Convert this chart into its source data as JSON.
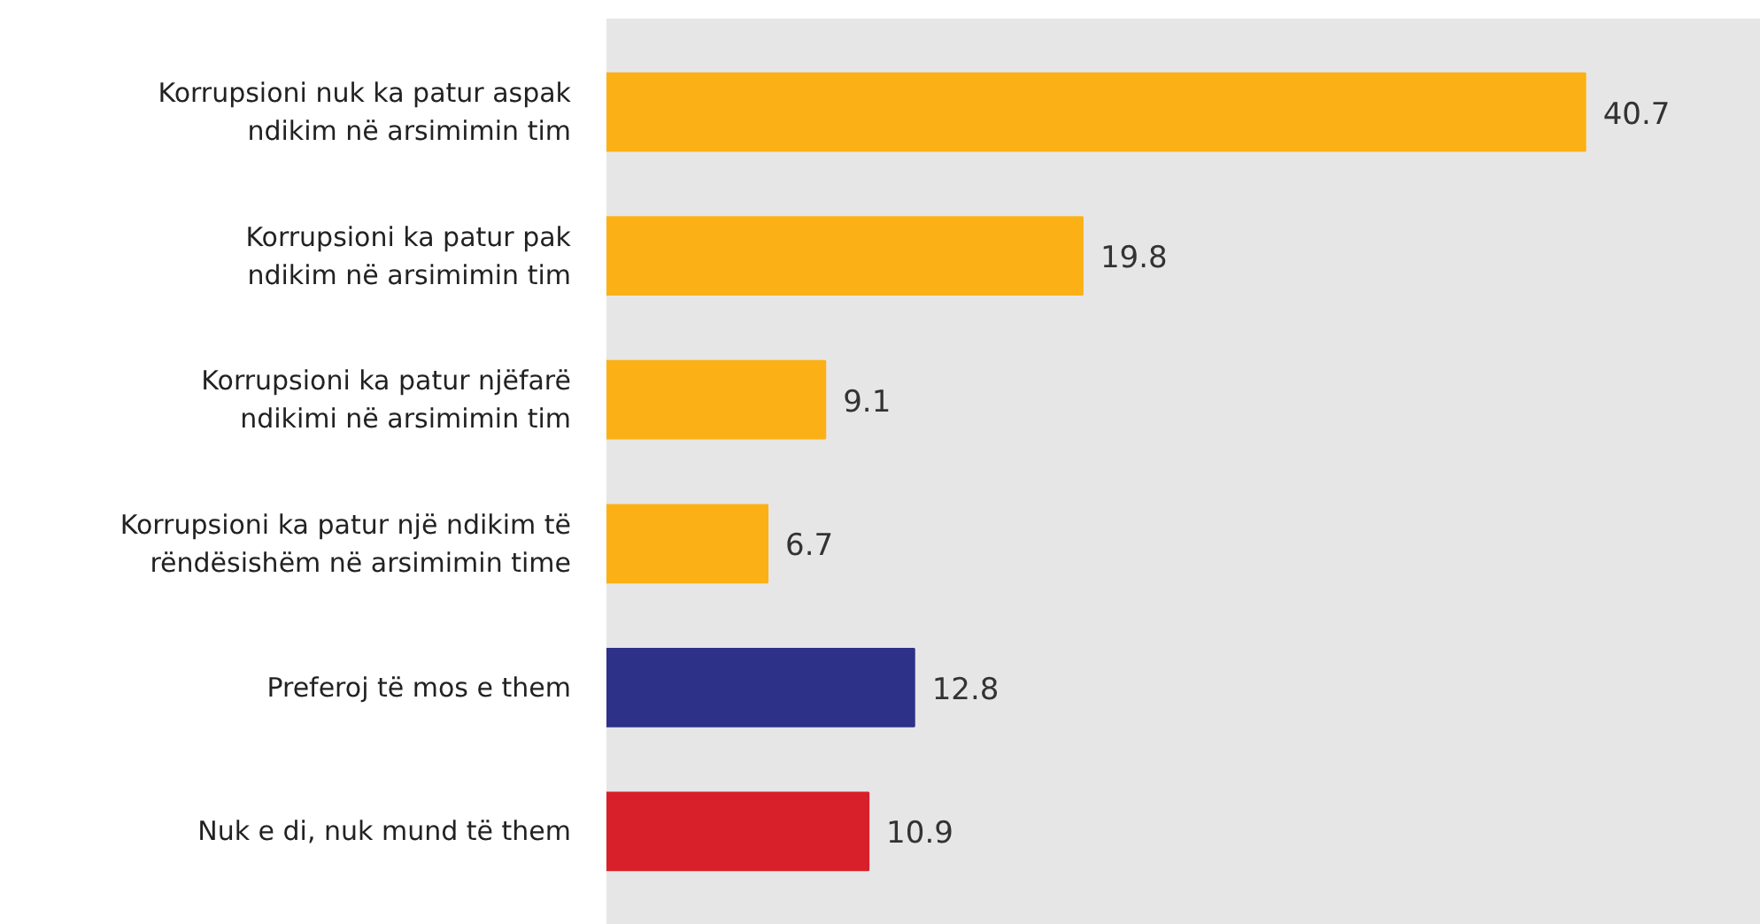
{
  "chart_data": {
    "type": "bar",
    "orientation": "horizontal",
    "categories": [
      "Korrupsioni nuk ka patur aspak\nndikim në arsimimin tim",
      "Korrupsioni ka patur pak\nndikim në arsimimin tim",
      "Korrupsioni ka patur njëfarë\nndikimi në arsimimin tim",
      "Korrupsioni ka patur një ndikim të\nrëndësishëm në arsimimin time",
      "Preferoj të mos e them",
      "Nuk e di, nuk mund të them"
    ],
    "values": [
      40.7,
      19.8,
      9.1,
      6.7,
      12.8,
      10.9
    ],
    "colors": [
      "#fbb116",
      "#fbb116",
      "#fbb116",
      "#fbb116",
      "#2e3188",
      "#d7202a"
    ],
    "xlim": [
      0,
      48
    ],
    "data_labels": true,
    "tick_labels": "y"
  }
}
